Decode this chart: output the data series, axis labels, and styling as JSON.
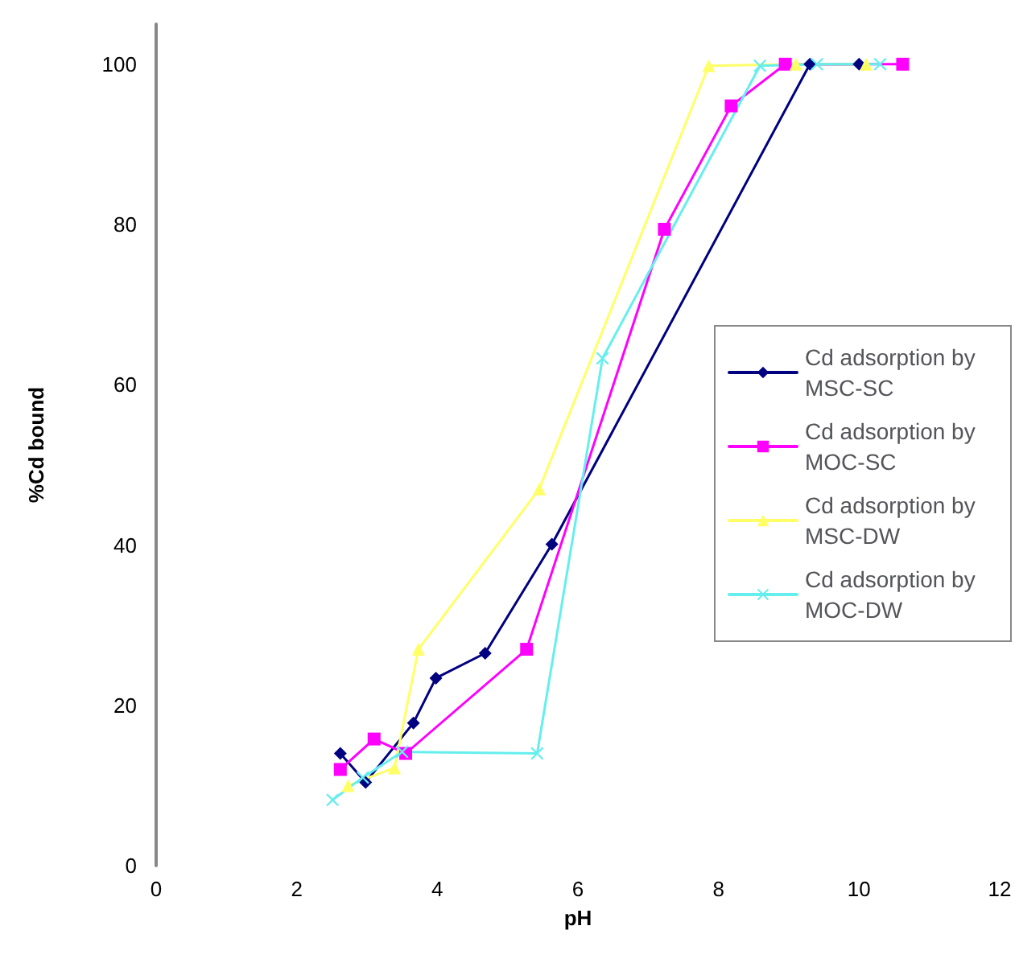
{
  "chart_data": {
    "type": "line",
    "xlabel": "pH",
    "ylabel": "%Cd bound",
    "xlim": [
      0,
      12
    ],
    "xticks": [
      0,
      2,
      4,
      6,
      8,
      10,
      12
    ],
    "ylim": [
      0,
      105
    ],
    "yticks": [
      0,
      20,
      40,
      60,
      80,
      100
    ],
    "grid": false,
    "legend": "right",
    "series": [
      {
        "name": "Cd adsorption by MSC-SC",
        "color": "#000080",
        "marker": "diamond",
        "x": [
          2.62,
          2.98,
          3.66,
          3.98,
          4.68,
          5.63,
          9.3,
          10.0
        ],
        "values": [
          14.0,
          10.4,
          17.8,
          23.4,
          26.5,
          40.1,
          100,
          100
        ]
      },
      {
        "name": "Cd adsorption by MOC-SC",
        "color": "#ff00ff",
        "marker": "square",
        "x": [
          2.62,
          3.1,
          3.55,
          5.27,
          7.23,
          8.18,
          8.95,
          10.62
        ],
        "values": [
          12.0,
          15.8,
          14.0,
          27.0,
          79.4,
          94.8,
          100,
          100
        ]
      },
      {
        "name": "Cd adsorption by MSC-DW",
        "color": "#ffff66",
        "marker": "triangle",
        "x": [
          2.73,
          3.39,
          3.73,
          5.45,
          7.86,
          9.1,
          10.1
        ],
        "values": [
          10.0,
          12.2,
          27.0,
          47.0,
          99.8,
          100,
          100
        ]
      },
      {
        "name": "Cd adsorption by MOC-DW",
        "color": "#66eeee",
        "marker": "cross",
        "x": [
          2.51,
          2.94,
          3.5,
          5.42,
          6.35,
          8.59,
          9.4,
          10.3
        ],
        "values": [
          8.2,
          11.0,
          14.2,
          14.0,
          63.3,
          99.8,
          100,
          100
        ]
      }
    ]
  }
}
